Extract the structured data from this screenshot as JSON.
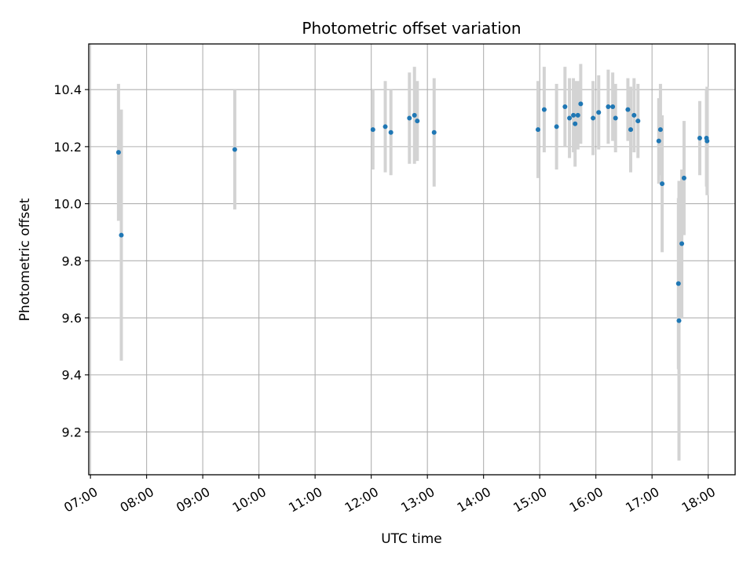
{
  "chart_data": {
    "type": "scatter",
    "title": "Photometric offset variation",
    "xlabel": "UTC time",
    "ylabel": "Photometric offset",
    "x_unit": "hour of day (UTC)",
    "xlim": [
      6.97,
      18.48
    ],
    "ylim": [
      9.05,
      10.56
    ],
    "x_ticks": [
      7,
      8,
      9,
      10,
      11,
      12,
      13,
      14,
      15,
      16,
      17,
      18
    ],
    "x_tick_labels": [
      "07:00",
      "08:00",
      "09:00",
      "10:00",
      "11:00",
      "12:00",
      "13:00",
      "14:00",
      "15:00",
      "16:00",
      "17:00",
      "18:00"
    ],
    "y_ticks": [
      9.2,
      9.4,
      9.6,
      9.8,
      10.0,
      10.2,
      10.4
    ],
    "y_tick_labels": [
      "9.2",
      "9.4",
      "9.6",
      "9.8",
      "10.0",
      "10.2",
      "10.4"
    ],
    "grid": true,
    "colors": {
      "point": "#1f77b4",
      "errorbar": "#d3d3d3",
      "grid": "#b0b0b0"
    },
    "points": [
      {
        "x": 7.5,
        "y": 10.18,
        "err": 0.24
      },
      {
        "x": 7.55,
        "y": 9.89,
        "err": 0.44
      },
      {
        "x": 9.57,
        "y": 10.19,
        "err": 0.21
      },
      {
        "x": 12.03,
        "y": 10.26,
        "err": 0.14
      },
      {
        "x": 12.25,
        "y": 10.27,
        "err": 0.16
      },
      {
        "x": 12.35,
        "y": 10.25,
        "err": 0.15
      },
      {
        "x": 12.68,
        "y": 10.3,
        "err": 0.16
      },
      {
        "x": 12.77,
        "y": 10.31,
        "err": 0.17
      },
      {
        "x": 12.82,
        "y": 10.29,
        "err": 0.14
      },
      {
        "x": 13.12,
        "y": 10.25,
        "err": 0.19
      },
      {
        "x": 14.97,
        "y": 10.26,
        "err": 0.17
      },
      {
        "x": 15.08,
        "y": 10.33,
        "err": 0.15
      },
      {
        "x": 15.3,
        "y": 10.27,
        "err": 0.15
      },
      {
        "x": 15.45,
        "y": 10.34,
        "err": 0.14
      },
      {
        "x": 15.53,
        "y": 10.3,
        "err": 0.14
      },
      {
        "x": 15.6,
        "y": 10.31,
        "err": 0.13
      },
      {
        "x": 15.63,
        "y": 10.28,
        "err": 0.15
      },
      {
        "x": 15.68,
        "y": 10.31,
        "err": 0.12
      },
      {
        "x": 15.73,
        "y": 10.35,
        "err": 0.14
      },
      {
        "x": 15.95,
        "y": 10.3,
        "err": 0.13
      },
      {
        "x": 16.05,
        "y": 10.32,
        "err": 0.13
      },
      {
        "x": 16.22,
        "y": 10.34,
        "err": 0.13
      },
      {
        "x": 16.3,
        "y": 10.34,
        "err": 0.12
      },
      {
        "x": 16.35,
        "y": 10.3,
        "err": 0.12
      },
      {
        "x": 16.57,
        "y": 10.33,
        "err": 0.11
      },
      {
        "x": 16.62,
        "y": 10.26,
        "err": 0.15
      },
      {
        "x": 16.68,
        "y": 10.31,
        "err": 0.13
      },
      {
        "x": 16.75,
        "y": 10.29,
        "err": 0.13
      },
      {
        "x": 17.12,
        "y": 10.22,
        "err": 0.15
      },
      {
        "x": 17.15,
        "y": 10.26,
        "err": 0.16
      },
      {
        "x": 17.18,
        "y": 10.07,
        "err": 0.24
      },
      {
        "x": 17.47,
        "y": 9.72,
        "err": 0.3
      },
      {
        "x": 17.48,
        "y": 9.59,
        "err": 0.49
      },
      {
        "x": 17.53,
        "y": 9.86,
        "err": 0.26
      },
      {
        "x": 17.57,
        "y": 10.09,
        "err": 0.2
      },
      {
        "x": 17.85,
        "y": 10.23,
        "err": 0.13
      },
      {
        "x": 17.97,
        "y": 10.23,
        "err": 0.17
      },
      {
        "x": 17.98,
        "y": 10.22,
        "err": 0.19
      }
    ]
  }
}
